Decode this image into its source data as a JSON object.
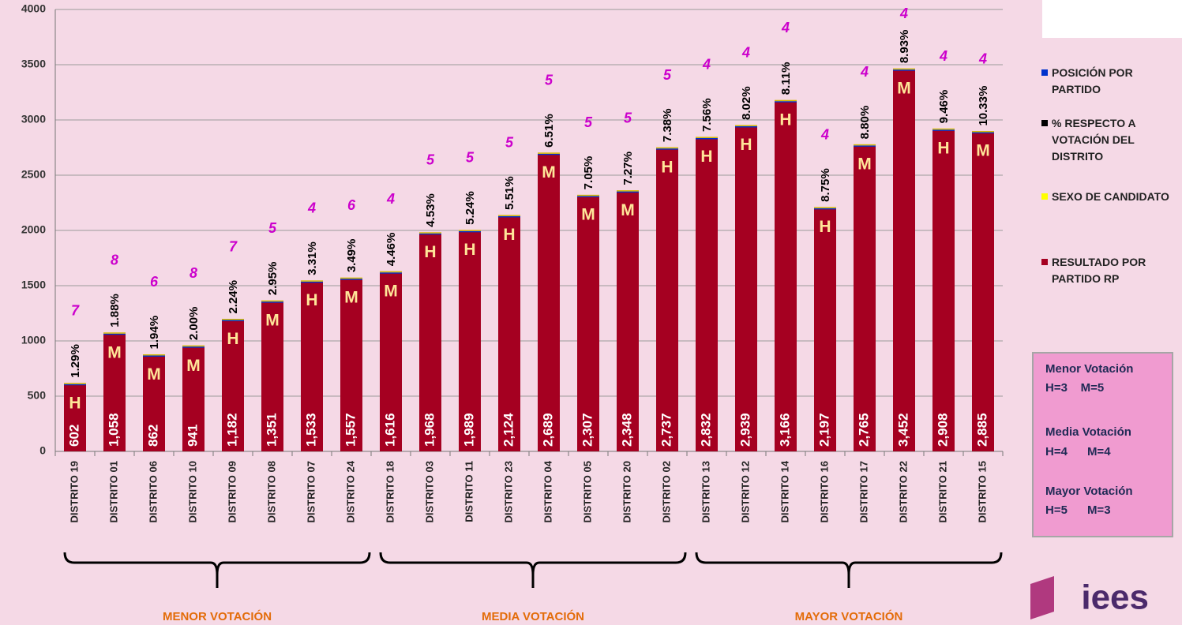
{
  "chart_data": {
    "type": "bar",
    "categories": [
      "DISTRITO 19",
      "DISTRITO 01",
      "DISTRITO 06",
      "DISTRITO 10",
      "DISTRITO 09",
      "DISTRITO 08",
      "DISTRITO 07",
      "DISTRITO 24",
      "DISTRITO 18",
      "DISTRITO 03",
      "DISTRITO 11",
      "DISTRITO 23",
      "DISTRITO 04",
      "DISTRITO 05",
      "DISTRITO 20",
      "DISTRITO 02",
      "DISTRITO 13",
      "DISTRITO 12",
      "DISTRITO 14",
      "DISTRITO 16",
      "DISTRITO 17",
      "DISTRITO 22",
      "DISTRITO 21",
      "DISTRITO 15"
    ],
    "series": [
      {
        "name": "RESULTADO POR PARTIDO RP",
        "color": "#a50021",
        "values": [
          602,
          1058,
          862,
          941,
          1182,
          1351,
          1533,
          1557,
          1616,
          1968,
          1989,
          2124,
          2689,
          2307,
          2348,
          2737,
          2832,
          2939,
          3166,
          2197,
          2765,
          3452,
          2908,
          2885
        ],
        "value_labels": [
          "602",
          "1,058",
          "862",
          "941",
          "1,182",
          "1,351",
          "1,533",
          "1,557",
          "1,616",
          "1,968",
          "1,989",
          "2,124",
          "2,689",
          "2,307",
          "2,348",
          "2,737",
          "2,832",
          "2,939",
          "3,166",
          "2,197",
          "2,765",
          "3,452",
          "2,908",
          "2,885"
        ]
      },
      {
        "name": "SEXO DE CANDIDATO",
        "color": "#ffff00",
        "labels": [
          "H",
          "M",
          "M",
          "M",
          "H",
          "M",
          "H",
          "M",
          "M",
          "H",
          "H",
          "H",
          "M",
          "M",
          "M",
          "H",
          "H",
          "H",
          "H",
          "H",
          "M",
          "M",
          "H",
          "M"
        ]
      },
      {
        "name": "% RESPECTO A VOTACIÓN DEL DISTRITO",
        "color": "#000000",
        "values": [
          1.29,
          1.88,
          1.94,
          2.0,
          2.24,
          2.95,
          3.31,
          3.49,
          4.46,
          4.53,
          5.24,
          5.51,
          6.51,
          7.05,
          7.27,
          7.38,
          7.56,
          8.02,
          8.11,
          8.75,
          8.8,
          8.93,
          9.46,
          10.33
        ],
        "value_labels": [
          "1.29%",
          "1.88%",
          "1.94%",
          "2.00%",
          "2.24%",
          "2.95%",
          "3.31%",
          "3.49%",
          "4.46%",
          "4.53%",
          "5.24%",
          "5.51%",
          "6.51%",
          "7.05%",
          "7.27%",
          "7.38%",
          "7.56%",
          "8.02%",
          "8.11%",
          "8.75%",
          "8.80%",
          "8.93%",
          "9.46%",
          "10.33%"
        ]
      },
      {
        "name": "POSICIÓN POR PARTIDO",
        "color": "#0033cc",
        "values": [
          7,
          8,
          6,
          8,
          7,
          5,
          4,
          6,
          4,
          5,
          5,
          5,
          5,
          5,
          5,
          5,
          4,
          4,
          4,
          4,
          4,
          4,
          4,
          4
        ]
      }
    ],
    "ylim": [
      0,
      4000
    ],
    "yticks": [
      0,
      500,
      1000,
      1500,
      2000,
      2500,
      3000,
      3500,
      4000
    ],
    "grid": true,
    "groups": [
      {
        "label": "MENOR VOTACIÓN",
        "size": 8
      },
      {
        "label": "MEDIA VOTACIÓN",
        "size": 8
      },
      {
        "label": "MAYOR VOTACIÓN",
        "size": 8
      }
    ],
    "info_box": [
      "Menor Votación",
      "H=3    M=5",
      "Media Votación",
      "H=4      M=4",
      "Mayor Votación",
      "H=5      M=3"
    ],
    "logo": "iees"
  }
}
